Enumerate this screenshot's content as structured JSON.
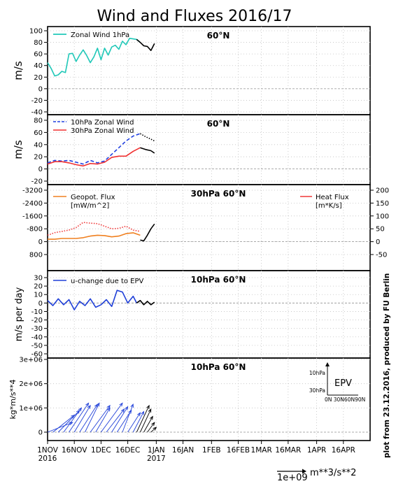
{
  "title": "Wind and Fluxes 2016/17",
  "side_note": "plot from 23.12.2016, produced by FU Berlin",
  "x_axis": {
    "ticks": [
      "1NOV",
      "16NOV",
      "1DEC",
      "16DEC",
      "1JAN",
      "16JAN",
      "1FEB",
      "16FEB",
      "1MAR",
      "16MAR",
      "1APR",
      "16APR"
    ],
    "year_labels": [
      "2016",
      "2017"
    ]
  },
  "scale_note": {
    "label": "1e+09",
    "unit": "m**3/s**2"
  },
  "colors": {
    "cyan": "#20c8b8",
    "blue_dash": "#2040e0",
    "red": "#f03030",
    "orange": "#f08020",
    "red_dot": "#f03838",
    "blue": "#2040d8",
    "forecast": "#000000",
    "zero_line": "#909090",
    "grid": "#c0c0c0"
  },
  "chart_data": [
    {
      "type": "line",
      "panel": "zonal-1hpa",
      "title": "60°N",
      "ylabel": "m/s",
      "ylim": [
        -40,
        100
      ],
      "yticks": [
        -40,
        -20,
        0,
        20,
        40,
        60,
        80,
        100
      ],
      "series": [
        {
          "name": "Zonal Wind 1hPa",
          "color": "cyan",
          "style": "solid",
          "x": [
            0,
            2,
            4,
            6,
            8,
            10,
            12,
            14,
            16,
            18,
            20,
            22,
            24,
            26,
            28,
            30,
            32,
            34,
            36,
            38,
            40,
            42,
            44,
            46,
            48,
            50,
            52
          ],
          "y": [
            45,
            35,
            22,
            24,
            30,
            28,
            60,
            61,
            47,
            58,
            67,
            57,
            45,
            55,
            70,
            50,
            70,
            58,
            72,
            75,
            68,
            82,
            76,
            87,
            86,
            85,
            80
          ]
        },
        {
          "name": "forecast",
          "color": "forecast",
          "style": "solid",
          "x": [
            50,
            52,
            54,
            56,
            58,
            60
          ],
          "y": [
            85,
            80,
            74,
            73,
            66,
            78
          ]
        }
      ]
    },
    {
      "type": "line",
      "panel": "zonal-10-30hpa",
      "title": "60°N",
      "ylabel": "m/s",
      "ylim": [
        -20,
        80
      ],
      "yticks": [
        -20,
        0,
        20,
        40,
        60,
        80
      ],
      "series": [
        {
          "name": "10hPa Zonal Wind",
          "color": "blue_dash",
          "style": "dash",
          "x": [
            0,
            4,
            8,
            12,
            16,
            20,
            24,
            28,
            32,
            36,
            40,
            44,
            48,
            52
          ],
          "y": [
            10,
            14,
            13,
            14,
            11,
            8,
            14,
            10,
            13,
            24,
            35,
            46,
            54,
            58
          ]
        },
        {
          "name": "30hPa Zonal Wind",
          "color": "red",
          "style": "solid",
          "x": [
            0,
            4,
            8,
            12,
            16,
            20,
            24,
            28,
            32,
            36,
            40,
            44,
            48,
            52
          ],
          "y": [
            8,
            12,
            12,
            10,
            7,
            5,
            9,
            8,
            11,
            19,
            21,
            21,
            29,
            35
          ]
        },
        {
          "name": "forecast-10hpa",
          "color": "forecast",
          "style": "dot",
          "x": [
            52,
            55,
            58,
            60
          ],
          "y": [
            58,
            53,
            49,
            46
          ]
        },
        {
          "name": "forecast-30hpa",
          "color": "forecast",
          "style": "solid",
          "x": [
            52,
            55,
            58,
            60
          ],
          "y": [
            35,
            32,
            30,
            26
          ]
        }
      ]
    },
    {
      "type": "line",
      "panel": "fluxes-30hpa",
      "title": "30hPa 60°N",
      "ylim_left": [
        800,
        -3200
      ],
      "yticks_left": [
        -3200,
        -2400,
        -1600,
        -800,
        0,
        800
      ],
      "ylim_right": [
        -50,
        200
      ],
      "yticks_right": [
        -50,
        0,
        50,
        100,
        150,
        200
      ],
      "legend_left": {
        "name": "Geopot. Flux",
        "unit": "[mW/m^2]"
      },
      "legend_right": {
        "name": "Heat Flux",
        "unit": "[m*K/s]"
      },
      "series": [
        {
          "name": "Heat Flux",
          "axis": "right",
          "color": "red_dot",
          "style": "dot",
          "x": [
            0,
            4,
            8,
            12,
            16,
            20,
            24,
            28,
            32,
            36,
            40,
            44,
            48,
            52
          ],
          "y": [
            25,
            35,
            40,
            45,
            55,
            75,
            72,
            70,
            60,
            50,
            52,
            60,
            45,
            40
          ]
        },
        {
          "name": "Geopot. Flux",
          "axis": "left",
          "color": "orange",
          "style": "solid",
          "x": [
            0,
            4,
            8,
            12,
            16,
            20,
            24,
            28,
            32,
            36,
            40,
            44,
            48,
            52
          ],
          "y": [
            -150,
            -150,
            -200,
            -200,
            -200,
            -250,
            -350,
            -400,
            -380,
            -300,
            -350,
            -500,
            -550,
            -400
          ]
        },
        {
          "name": "forecast",
          "axis": "left",
          "color": "forecast",
          "style": "solid",
          "x": [
            52,
            54,
            56,
            58,
            60
          ],
          "y": [
            -100,
            -50,
            -400,
            -800,
            -1100
          ]
        }
      ]
    },
    {
      "type": "line",
      "panel": "epv-10hpa",
      "title": "10hPa 60°N",
      "ylabel": "m/s per day",
      "ylim": [
        -60,
        30
      ],
      "yticks": [
        -60,
        -50,
        -40,
        -30,
        -20,
        -10,
        0,
        10,
        20,
        30
      ],
      "series": [
        {
          "name": "u-change due to EPV",
          "color": "blue",
          "style": "solid",
          "x": [
            0,
            3,
            6,
            9,
            12,
            15,
            18,
            21,
            24,
            27,
            30,
            33,
            36,
            39,
            42,
            45,
            48,
            50
          ],
          "y": [
            3,
            -3,
            5,
            -2,
            4,
            -8,
            2,
            -3,
            5,
            -5,
            -2,
            4,
            -4,
            15,
            13,
            0,
            8,
            0
          ]
        },
        {
          "name": "forecast",
          "color": "forecast",
          "style": "solid",
          "x": [
            50,
            52,
            54,
            56,
            58,
            60
          ],
          "y": [
            0,
            3,
            -2,
            2,
            -2,
            1
          ]
        }
      ]
    },
    {
      "type": "scatter",
      "panel": "epv-vectors",
      "title": "10hPa 60°N",
      "ylabel": "kg*m/s**4",
      "ylim": [
        0,
        3000000
      ],
      "yticks": [
        "0",
        "1e+06",
        "2e+06",
        "3e+06"
      ],
      "legend": {
        "label": "EPV",
        "vertical_ticks": [
          "30hPa",
          "10hPa"
        ],
        "horizontal_ticks": "0N 30N60N90N"
      },
      "series": [
        {
          "name": "vectors",
          "color": "blue",
          "style": "arrow",
          "x_day": [
            0,
            3,
            6,
            9,
            12,
            15,
            18,
            21,
            24,
            27,
            30,
            33,
            36,
            39,
            42,
            45,
            48
          ],
          "base_y": [
            0,
            0,
            0,
            0,
            0,
            0,
            0,
            0,
            0,
            0,
            0,
            0,
            0,
            0,
            0,
            0,
            0
          ],
          "dx_day": [
            14,
            12,
            12,
            10,
            11,
            9,
            10,
            8,
            11,
            8,
            12,
            10,
            9,
            8,
            6,
            7,
            6
          ],
          "dy": [
            400000,
            700000,
            900000,
            1000000,
            1200000,
            1100000,
            1150000,
            1200000,
            1100000,
            1000000,
            1200000,
            950000,
            1050000,
            900000,
            1150000,
            800000,
            850000
          ]
        },
        {
          "name": "forecast-vectors",
          "color": "forecast",
          "style": "arrow",
          "x_day": [
            50,
            52,
            54,
            56,
            58
          ],
          "base_y": [
            0,
            0,
            0,
            0,
            0
          ],
          "dx_day": [
            7,
            6,
            5,
            4,
            3
          ],
          "dy": [
            1100000,
            950000,
            650000,
            400000,
            200000
          ]
        }
      ]
    }
  ]
}
